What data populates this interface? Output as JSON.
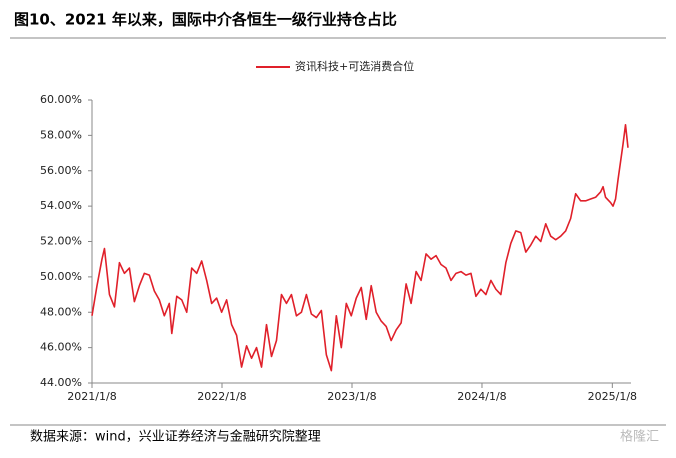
{
  "chart_data": {
    "type": "line",
    "title": "图10、2021 年以来，国际中介各恒生一级行业持仓占比",
    "source": "数据来源：wind，兴业证券经济与金融研究院整理",
    "watermark": "格隆汇",
    "legend": "top-center",
    "x": [
      "2021/1/8",
      "2021/1/22",
      "2021/2/5",
      "2021/2/12",
      "2021/2/26",
      "2021/3/12",
      "2021/3/26",
      "2021/4/9",
      "2021/4/23",
      "2021/5/7",
      "2021/5/21",
      "2021/6/4",
      "2021/6/18",
      "2021/7/2",
      "2021/7/16",
      "2021/7/30",
      "2021/8/13",
      "2021/8/20",
      "2021/9/3",
      "2021/9/17",
      "2021/10/1",
      "2021/10/15",
      "2021/10/29",
      "2021/11/12",
      "2021/11/26",
      "2021/12/10",
      "2021/12/24",
      "2022/1/7",
      "2022/1/21",
      "2022/2/4",
      "2022/2/18",
      "2022/3/4",
      "2022/3/18",
      "2022/4/1",
      "2022/4/15",
      "2022/4/29",
      "2022/5/13",
      "2022/5/27",
      "2022/6/10",
      "2022/6/24",
      "2022/7/8",
      "2022/7/22",
      "2022/8/5",
      "2022/8/19",
      "2022/9/2",
      "2022/9/16",
      "2022/9/30",
      "2022/10/14",
      "2022/10/28",
      "2022/11/11",
      "2022/11/25",
      "2022/12/9",
      "2022/12/23",
      "2023/1/6",
      "2023/1/20",
      "2023/2/3",
      "2023/2/17",
      "2023/3/3",
      "2023/3/17",
      "2023/3/31",
      "2023/4/14",
      "2023/4/28",
      "2023/5/12",
      "2023/5/26",
      "2023/6/9",
      "2023/6/23",
      "2023/7/7",
      "2023/7/21",
      "2023/8/4",
      "2023/8/18",
      "2023/9/1",
      "2023/9/15",
      "2023/9/29",
      "2023/10/13",
      "2023/10/27",
      "2023/11/10",
      "2023/11/24",
      "2023/12/8",
      "2023/12/22",
      "2024/1/5",
      "2024/1/19",
      "2024/2/2",
      "2024/2/16",
      "2024/3/1",
      "2024/3/15",
      "2024/3/29",
      "2024/4/12",
      "2024/4/26",
      "2024/5/10",
      "2024/5/24",
      "2024/6/7",
      "2024/6/21",
      "2024/7/5",
      "2024/7/19",
      "2024/8/2",
      "2024/8/16",
      "2024/8/30",
      "2024/9/13",
      "2024/9/27",
      "2024/10/11",
      "2024/10/25",
      "2024/11/8",
      "2024/11/22",
      "2024/12/6",
      "2024/12/13",
      "2024/12/20",
      "2025/1/3",
      "2025/1/10",
      "2025/1/17",
      "2025/1/24",
      "2025/2/7",
      "2025/2/14",
      "2025/2/21"
    ],
    "series": [
      {
        "name": "资讯科技+可选消费合位",
        "color": "#e0202a",
        "values": [
          47.8,
          49.5,
          51.0,
          51.6,
          49.0,
          48.3,
          50.8,
          50.2,
          50.5,
          48.6,
          49.5,
          50.2,
          50.1,
          49.2,
          48.7,
          47.8,
          48.5,
          46.8,
          48.9,
          48.7,
          48.0,
          50.5,
          50.2,
          50.9,
          49.8,
          48.5,
          48.8,
          48.0,
          48.7,
          47.3,
          46.7,
          44.9,
          46.1,
          45.4,
          46.0,
          44.9,
          47.3,
          45.5,
          46.4,
          49.0,
          48.5,
          49.0,
          47.8,
          48.0,
          49.0,
          47.9,
          47.7,
          48.1,
          45.6,
          44.7,
          47.8,
          46.0,
          48.5,
          47.8,
          48.8,
          49.4,
          47.6,
          49.5,
          48.0,
          47.5,
          47.2,
          46.4,
          47.0,
          47.4,
          49.6,
          48.5,
          50.3,
          49.8,
          51.3,
          51.0,
          51.2,
          50.7,
          50.5,
          49.8,
          50.2,
          50.3,
          50.1,
          50.2,
          48.9,
          49.3,
          49.0,
          49.8,
          49.3,
          49.0,
          50.8,
          51.9,
          52.6,
          52.5,
          51.4,
          51.8,
          52.3,
          52.0,
          53.0,
          52.3,
          52.1,
          52.3,
          52.6,
          53.3,
          54.7,
          54.3,
          54.3,
          54.4,
          54.5,
          54.8,
          55.1,
          54.5,
          54.2,
          54.0,
          54.4,
          55.5,
          57.5,
          58.6,
          57.3
        ]
      }
    ],
    "xlim": [
      "2021/1/8",
      "2025/2/21"
    ],
    "xticks": [
      "2021/1/8",
      "2022/1/8",
      "2023/1/8",
      "2024/1/8",
      "2025/1/8"
    ],
    "ylim": [
      44,
      60
    ],
    "yticks": [
      {
        "value": 44,
        "label": "44.00%"
      },
      {
        "value": 46,
        "label": "46.00%"
      },
      {
        "value": 48,
        "label": "48.00%"
      },
      {
        "value": 50,
        "label": "50.00%"
      },
      {
        "value": 52,
        "label": "52.00%"
      },
      {
        "value": 54,
        "label": "54.00%"
      },
      {
        "value": 56,
        "label": "56.00%"
      },
      {
        "value": 58,
        "label": "58.00%"
      },
      {
        "value": 60,
        "label": "60.00%"
      }
    ],
    "grid": false
  }
}
